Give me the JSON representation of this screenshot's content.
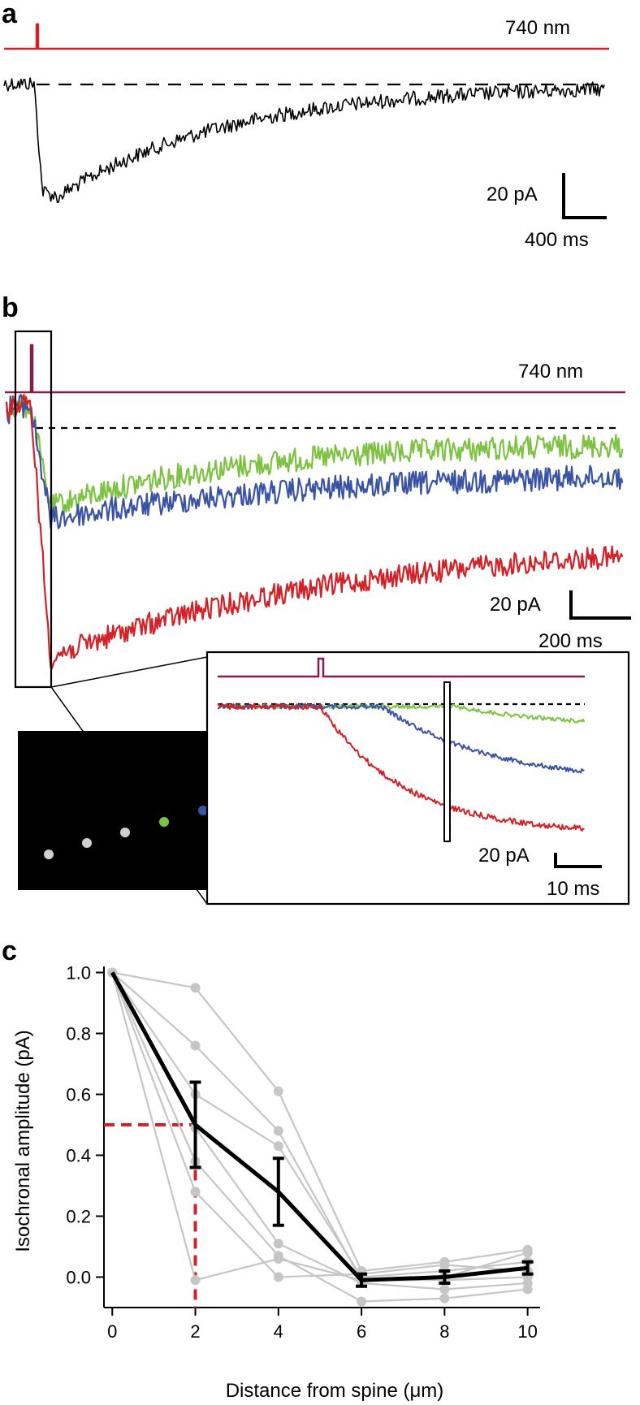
{
  "panels": {
    "a": {
      "letter": "a",
      "stim_label": "740 nm",
      "scale_y": "20 pA",
      "scale_x": "400 ms",
      "colors": {
        "stim": "#d42027",
        "trace": "#000000"
      }
    },
    "b": {
      "letter": "b",
      "stim_label": "740 nm",
      "scale_y": "20 pA",
      "scale_x": "200 ms",
      "inset_scale_y": "20 pA",
      "inset_scale_x": "10 ms",
      "colors": {
        "stim": "#8b1a4a",
        "green": "#7dc242",
        "blue": "#3a53a4",
        "red": "#d42027",
        "dot_gray": "#d0d0d0"
      }
    },
    "c": {
      "letter": "c"
    }
  },
  "chart_data": {
    "type": "line",
    "xlabel": "Distance from spine (μm)",
    "ylabel": "Isochronal amplitude (pA)",
    "x": [
      0,
      2,
      4,
      6,
      8,
      10
    ],
    "xticks": [
      "0",
      "2",
      "4",
      "6",
      "8",
      "10"
    ],
    "yticks": [
      "0.0",
      "0.2",
      "0.4",
      "0.6",
      "0.8",
      "1.0"
    ],
    "xlim": [
      -0.2,
      10.3
    ],
    "ylim": [
      -0.1,
      1.02
    ],
    "individual": [
      [
        1.0,
        0.95,
        0.61,
        0.02,
        0.05,
        0.09
      ],
      [
        1.0,
        0.76,
        0.48,
        -0.01,
        0.0,
        0.08
      ],
      [
        1.0,
        0.6,
        0.43,
        0.0,
        0.02,
        0.05
      ],
      [
        1.0,
        0.49,
        0.11,
        -0.02,
        -0.04,
        -0.02
      ],
      [
        1.0,
        0.38,
        0.07,
        -0.08,
        -0.07,
        -0.04
      ],
      [
        1.0,
        0.28,
        0.0,
        0.01,
        0.04,
        0.02
      ],
      [
        1.0,
        -0.01,
        0.06,
        -0.01,
        -0.01,
        0.0
      ]
    ],
    "mean": [
      1.0,
      0.5,
      0.28,
      -0.01,
      0.0,
      0.03
    ],
    "sem": [
      0.0,
      0.14,
      0.11,
      0.02,
      0.02,
      0.02
    ],
    "half_max": {
      "x": 2,
      "y": 0.5
    },
    "colors": {
      "individual": "#c6c6c6",
      "mean": "#000000",
      "half_max": "#d42027"
    }
  }
}
